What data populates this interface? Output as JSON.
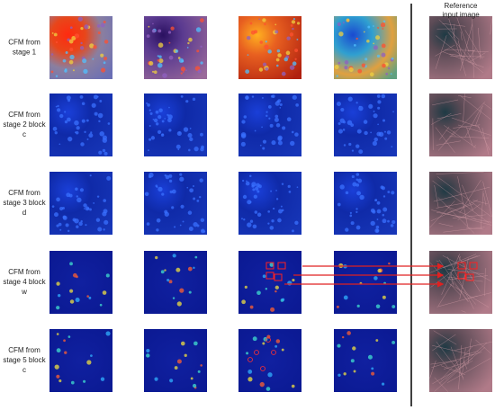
{
  "header": {
    "lines": [
      "Reference",
      "input image"
    ]
  },
  "rows": [
    {
      "label": [
        "CFM from",
        "stage 1"
      ]
    },
    {
      "label": [
        "CFM from",
        "stage 2 block",
        "c"
      ]
    },
    {
      "label": [
        "CFM from",
        "stage 3 block",
        "d"
      ]
    },
    {
      "label": [
        "CFM from",
        "stage 4 block",
        "w"
      ]
    },
    {
      "label": [
        "CFM from",
        "stage 5 block",
        "c"
      ]
    }
  ]
}
